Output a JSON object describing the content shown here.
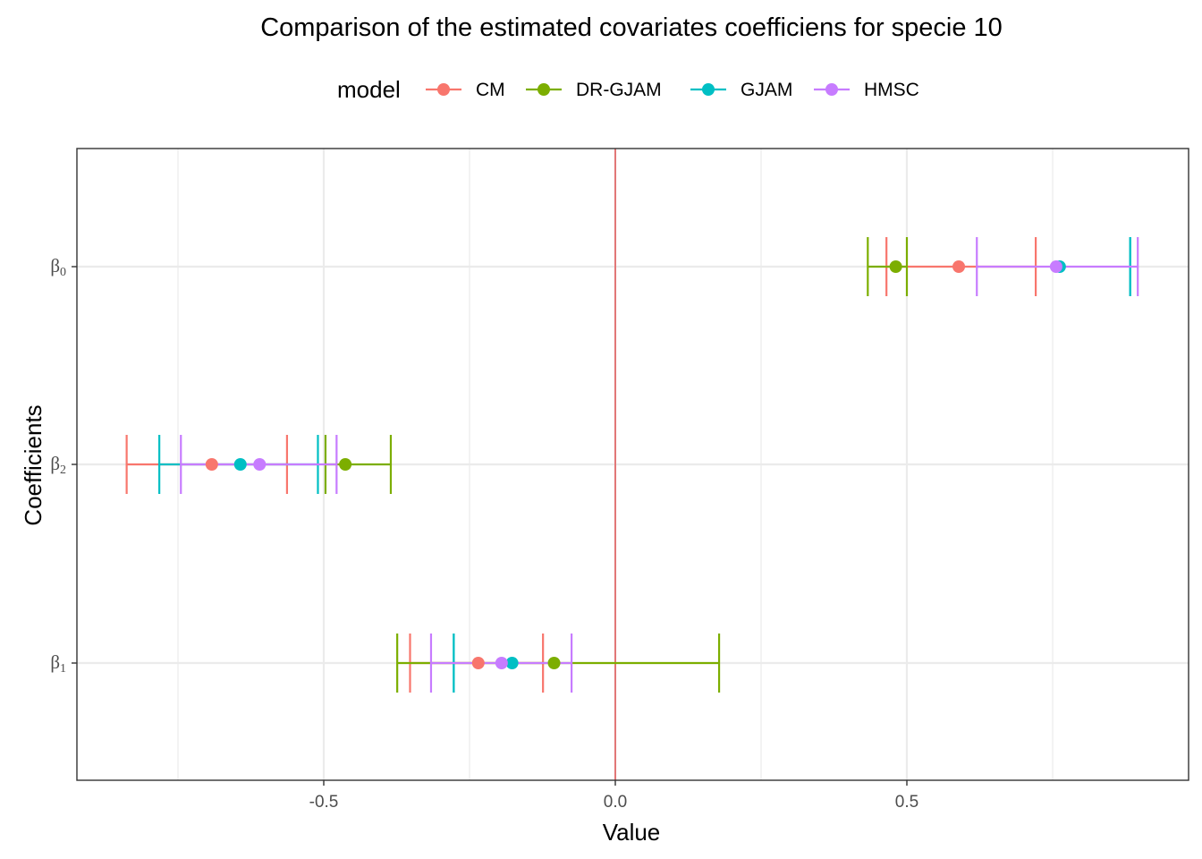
{
  "chart_data": {
    "type": "errorbar",
    "title": "Comparison of the estimated covariates coefficiens for specie  10",
    "xlabel": "Value",
    "ylabel": "Coefficients",
    "xlim": [
      -0.92,
      0.99
    ],
    "x_ticks": [
      -0.5,
      0.0,
      0.5
    ],
    "x_tick_labels": [
      "-0.5",
      "0.0",
      "0.5"
    ],
    "categories": [
      {
        "base": "β",
        "sub": "0"
      },
      {
        "base": "β",
        "sub": "2"
      },
      {
        "base": "β",
        "sub": "1"
      }
    ],
    "reference_line": {
      "x": 0,
      "color": "#e05a5a"
    },
    "grid": true,
    "legend": {
      "title": "model",
      "position": "top"
    },
    "series": [
      {
        "name": "CM",
        "color": "#F8766D",
        "points": [
          {
            "category": 0,
            "estimate": 0.589,
            "lower": 0.465,
            "upper": 0.721
          },
          {
            "category": 1,
            "estimate": -0.692,
            "lower": -0.838,
            "upper": -0.563
          },
          {
            "category": 2,
            "estimate": -0.235,
            "lower": -0.352,
            "upper": -0.124
          }
        ]
      },
      {
        "name": "DR-GJAM",
        "color": "#7CAE00",
        "points": [
          {
            "category": 0,
            "estimate": 0.481,
            "lower": 0.433,
            "upper": 0.5
          },
          {
            "category": 1,
            "estimate": -0.463,
            "lower": -0.497,
            "upper": -0.385
          },
          {
            "category": 2,
            "estimate": -0.105,
            "lower": -0.374,
            "upper": 0.178
          }
        ]
      },
      {
        "name": "GJAM",
        "color": "#00BFC4",
        "points": [
          {
            "category": 0,
            "estimate": 0.762,
            "lower": 0.883,
            "upper": 0.883
          },
          {
            "category": 1,
            "estimate": -0.643,
            "lower": -0.782,
            "upper": -0.51
          },
          {
            "category": 2,
            "estimate": -0.177,
            "lower": -0.277,
            "upper": -0.277
          }
        ]
      },
      {
        "name": "HMSC",
        "color": "#C77CFF",
        "points": [
          {
            "category": 0,
            "estimate": 0.756,
            "lower": 0.62,
            "upper": 0.896
          },
          {
            "category": 1,
            "estimate": -0.61,
            "lower": -0.745,
            "upper": -0.478
          },
          {
            "category": 2,
            "estimate": -0.195,
            "lower": -0.316,
            "upper": -0.075
          }
        ]
      }
    ]
  }
}
